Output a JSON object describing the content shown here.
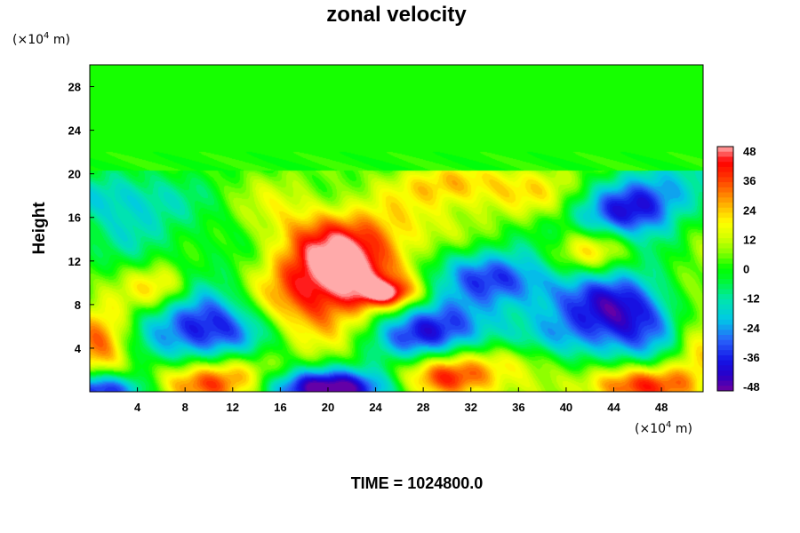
{
  "chart_data": {
    "type": "heatmap",
    "title": "zonal velocity",
    "ylabel": "Height",
    "x_unit_label": "(×10",
    "x_unit_exp": "4",
    "x_unit_suffix": " m)",
    "y_unit_label": "(×10",
    "y_unit_exp": "4",
    "y_unit_suffix": " m)",
    "xlim": [
      0,
      51.5
    ],
    "ylim": [
      0,
      30
    ],
    "x_ticks": [
      4,
      8,
      12,
      16,
      20,
      24,
      28,
      32,
      36,
      40,
      44,
      48
    ],
    "y_ticks": [
      4,
      8,
      12,
      16,
      20,
      24,
      28
    ],
    "colorbar": {
      "min": -48,
      "max": 48,
      "levels": 48,
      "tick_labels": [
        "48",
        "36",
        "24",
        "12",
        "0",
        "-12",
        "-24",
        "-36",
        "-48"
      ]
    },
    "features": [
      {
        "x": 20.5,
        "y": 10.0,
        "sx": 5.0,
        "sy": 3.0,
        "rot": -35,
        "amp": 46
      },
      {
        "x": 18.0,
        "y": 14.5,
        "sx": 4.5,
        "sy": 3.5,
        "rot": 0,
        "amp": 20
      },
      {
        "x": 10.0,
        "y": 5.5,
        "sx": 4.0,
        "sy": 2.5,
        "rot": 0,
        "amp": -42
      },
      {
        "x": 29.0,
        "y": 5.5,
        "sx": 3.5,
        "sy": 2.0,
        "rot": 0,
        "amp": -40
      },
      {
        "x": 34.0,
        "y": 10.5,
        "sx": 4.5,
        "sy": 1.8,
        "rot": 15,
        "amp": -34
      },
      {
        "x": 45.0,
        "y": 7.0,
        "sx": 3.5,
        "sy": 3.0,
        "rot": 0,
        "amp": -40
      },
      {
        "x": 46.0,
        "y": 17.0,
        "sx": 4.0,
        "sy": 2.0,
        "rot": -20,
        "amp": -42
      },
      {
        "x": 1.0,
        "y": 4.5,
        "sx": 2.0,
        "sy": 2.5,
        "rot": 0,
        "amp": 36
      },
      {
        "x": 9.5,
        "y": 0.6,
        "sx": 3.5,
        "sy": 1.5,
        "rot": 0,
        "amp": 48
      },
      {
        "x": 30.0,
        "y": 1.2,
        "sx": 3.0,
        "sy": 1.6,
        "rot": 0,
        "amp": 48
      },
      {
        "x": 45.5,
        "y": 0.6,
        "sx": 3.5,
        "sy": 1.4,
        "rot": 0,
        "amp": 40
      },
      {
        "x": 1.5,
        "y": 0.2,
        "sx": 3.0,
        "sy": 1.2,
        "rot": 0,
        "amp": -48
      },
      {
        "x": 20.0,
        "y": 0.3,
        "sx": 5.0,
        "sy": 1.3,
        "rot": 0,
        "amp": -48
      },
      {
        "x": 30.5,
        "y": 19.0,
        "sx": 3.0,
        "sy": 1.5,
        "rot": 0,
        "amp": 22
      },
      {
        "x": 38.0,
        "y": 18.5,
        "sx": 4.0,
        "sy": 2.0,
        "rot": 0,
        "amp": 14
      },
      {
        "x": 27.0,
        "y": 14.5,
        "sx": 5.0,
        "sy": 3.0,
        "rot": 0,
        "amp": 10
      },
      {
        "x": 4.0,
        "y": 15.5,
        "sx": 3.0,
        "sy": 2.0,
        "rot": 0,
        "amp": -10
      },
      {
        "x": 2.0,
        "y": 18.0,
        "sx": 3.0,
        "sy": 1.5,
        "rot": 0,
        "amp": -18
      },
      {
        "x": 11.0,
        "y": 13.0,
        "sx": 3.5,
        "sy": 3.0,
        "rot": 0,
        "amp": -8
      },
      {
        "x": 24.0,
        "y": 17.0,
        "sx": 4.0,
        "sy": 2.0,
        "rot": 0,
        "amp": -6
      },
      {
        "x": 36.0,
        "y": 3.0,
        "sx": 3.0,
        "sy": 1.2,
        "rot": 0,
        "amp": 14
      },
      {
        "x": 40.0,
        "y": 5.0,
        "sx": 2.5,
        "sy": 2.0,
        "rot": 0,
        "amp": -12
      },
      {
        "x": 13.0,
        "y": 2.5,
        "sx": 2.5,
        "sy": 1.5,
        "rot": 0,
        "amp": 14
      },
      {
        "x": 51.0,
        "y": 12.0,
        "sx": 2.5,
        "sy": 4.0,
        "rot": 0,
        "amp": 10
      },
      {
        "x": 51.0,
        "y": 4.0,
        "sx": 1.8,
        "sy": 2.5,
        "rot": 0,
        "amp": 22
      },
      {
        "x": 42.0,
        "y": 13.0,
        "sx": 2.5,
        "sy": 1.5,
        "rot": 0,
        "amp": 26
      },
      {
        "x": 6.0,
        "y": 9.5,
        "sx": 2.0,
        "sy": 1.5,
        "rot": 0,
        "amp": 26
      },
      {
        "x": 25.0,
        "y": 9.0,
        "sx": 1.8,
        "sy": 0.9,
        "rot": 0,
        "amp": 30
      }
    ],
    "upper_level_y": 20.3,
    "upper_level_value": 1
  },
  "time_label": "TIME = 1024800.0"
}
